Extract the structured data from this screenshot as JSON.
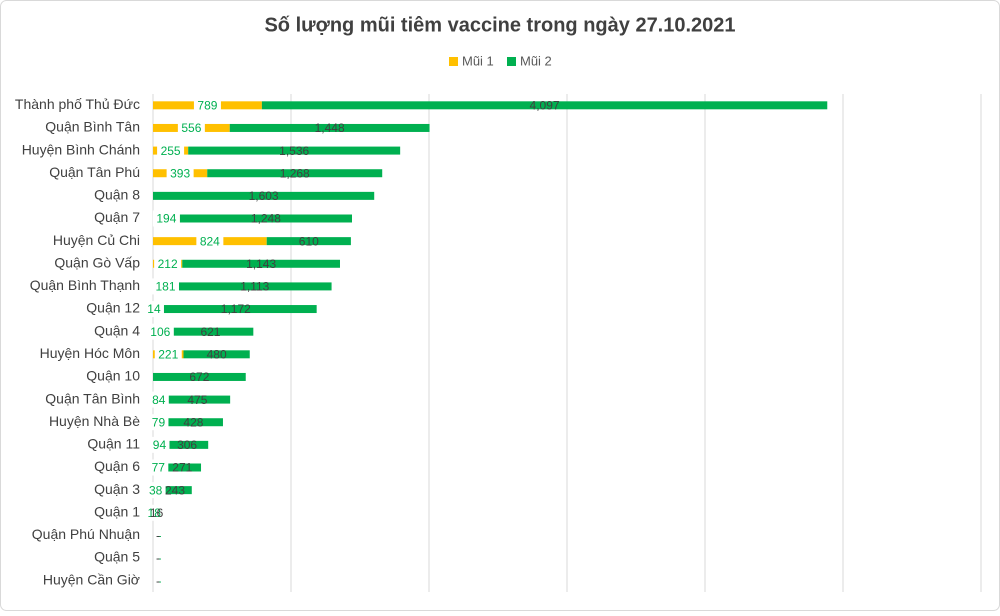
{
  "chart_data": {
    "type": "stacked-bar-horizontal",
    "title": "Số lượng mũi tiêm vaccine trong ngày 27.10.2021",
    "categories": [
      "Thành phố Thủ Đức",
      "Quận Bình Tân",
      "Huyện Bình Chánh",
      "Quận Tân Phú",
      "Quận 8",
      "Quận 7",
      "Huyện Củ Chi",
      "Quận Gò Vấp",
      "Quận Bình Thạnh",
      "Quận 12",
      "Quận 4",
      "Huyện Hóc Môn",
      "Quận 10",
      "Quận Tân Bình",
      "Huyện Nhà Bè",
      "Quận 11",
      "Quận 6",
      "Quận 3",
      "Quận 1",
      "Quận Phú Nhuận",
      "Quận 5",
      "Huyện Cần Giờ"
    ],
    "series": [
      {
        "name": "Mũi 1",
        "color": "#ffc000",
        "values": [
          789,
          556,
          255,
          393,
          0,
          194,
          824,
          212,
          181,
          14,
          106,
          221,
          0,
          84,
          79,
          94,
          77,
          38,
          18,
          0,
          0,
          0
        ],
        "value_labels": [
          "789",
          "556",
          "255",
          "393",
          "-",
          "194",
          "824",
          "212",
          "181",
          "14",
          "106",
          "221",
          "-",
          "84",
          "79",
          "94",
          "77",
          "38",
          "18",
          "-",
          "-",
          "-"
        ]
      },
      {
        "name": "Mũi 2",
        "color": "#00b050",
        "values": [
          4097,
          1448,
          1536,
          1268,
          1603,
          1248,
          610,
          1143,
          1113,
          1172,
          621,
          480,
          672,
          475,
          428,
          306,
          271,
          243,
          16,
          0,
          0,
          0
        ],
        "value_labels": [
          "4,097",
          "1,448",
          "1,536",
          "1,268",
          "1,603",
          "1,248",
          "610",
          "1,143",
          "1,113",
          "1,172",
          "621",
          "480",
          "672",
          "475",
          "428",
          "306",
          "271",
          "243",
          "16",
          "-",
          "-",
          "-"
        ]
      }
    ],
    "xlim": [
      0,
      6000
    ],
    "xticks": [
      0,
      1000,
      2000,
      3000,
      4000,
      5000,
      6000
    ],
    "grid": true,
    "legend": "top"
  }
}
